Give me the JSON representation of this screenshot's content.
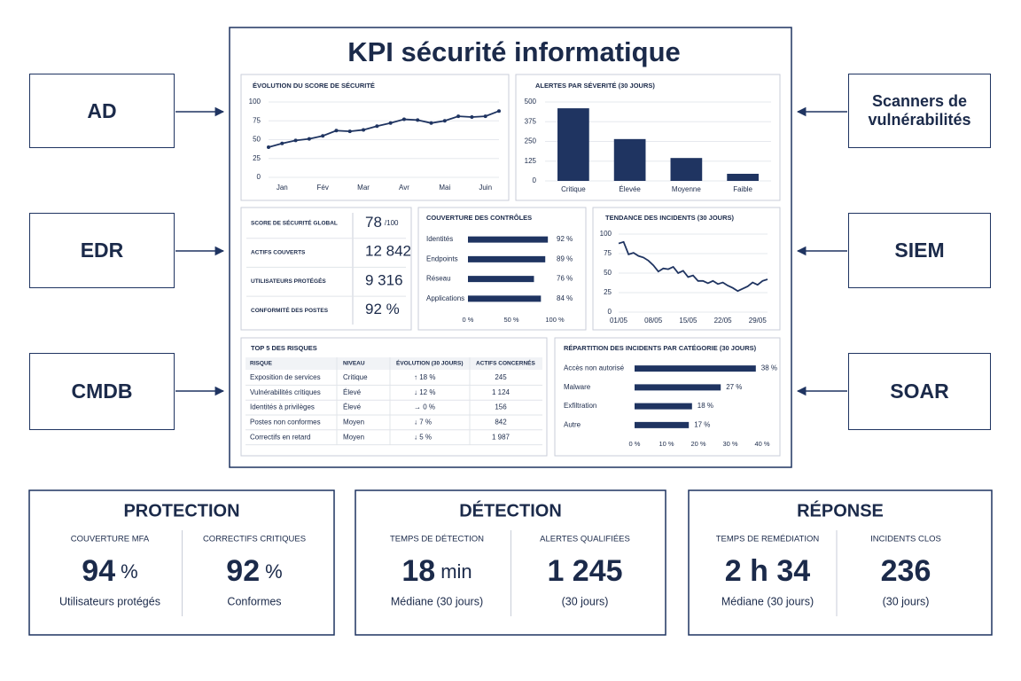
{
  "title": "KPI sécurité informatique",
  "sources_left": [
    "AD",
    "EDR",
    "CMDB"
  ],
  "sources_right": [
    "Scanners de vulnérabilités",
    "SIEM",
    "SOAR"
  ],
  "chart_data": [
    {
      "type": "line",
      "title": "ÉVOLUTION DU SCORE DE SÉCURITÉ",
      "color": "#1f3461",
      "markers": true,
      "grid": true,
      "categories": [
        null,
        "Jan",
        null,
        null,
        "Fév",
        null,
        null,
        "Mar",
        null,
        null,
        "Avr",
        null,
        null,
        "Mai",
        null,
        null,
        "Juin",
        null
      ],
      "values": [
        40,
        45,
        49,
        51,
        55,
        62,
        61,
        63,
        68,
        72,
        77,
        76,
        72,
        75,
        81,
        80,
        81,
        88
      ],
      "ylim": [
        0,
        100
      ],
      "yticks": [
        0,
        25,
        50,
        75,
        100
      ]
    },
    {
      "type": "bar",
      "title": "ALERTES PAR SÉVERITÉ (30 JOURS)",
      "color": "#1f3461",
      "grid": true,
      "categories": [
        "Critique",
        "Élevée",
        "Moyenne",
        "Faible"
      ],
      "values": [
        460,
        265,
        145,
        45
      ],
      "ylim": [
        0,
        500
      ],
      "yticks": [
        0,
        125,
        250,
        375,
        500
      ]
    },
    {
      "type": "hbar",
      "title": "COUVERTURE DES CONTRÔLES",
      "color": "#1f3461",
      "categories": [
        "Identités",
        "Endpoints",
        "Réseau",
        "Applications"
      ],
      "values": [
        92,
        89,
        76,
        84
      ],
      "value_labels": [
        "92 %",
        "89 %",
        "76 %",
        "84 %"
      ],
      "xlim": [
        0,
        100
      ],
      "xticks": [
        {
          "value": 0,
          "label": "0 %"
        },
        {
          "value": 50,
          "label": "50 %"
        },
        {
          "value": 100,
          "label": "100 %"
        }
      ]
    },
    {
      "type": "line",
      "title": "TENDANCE DES INCIDENTS (30 JOURS)",
      "color": "#1f3461",
      "markers": false,
      "grid": true,
      "categories": [
        "01/05",
        null,
        null,
        null,
        null,
        null,
        null,
        "08/05",
        null,
        null,
        null,
        null,
        null,
        null,
        "15/05",
        null,
        null,
        null,
        null,
        null,
        null,
        "22/05",
        null,
        null,
        null,
        null,
        null,
        null,
        "29/05",
        null,
        null
      ],
      "values": [
        88,
        90,
        74,
        76,
        72,
        70,
        66,
        60,
        52,
        56,
        55,
        58,
        50,
        53,
        45,
        47,
        40,
        40,
        37,
        40,
        36,
        38,
        34,
        31,
        27,
        30,
        33,
        38,
        35,
        40,
        42
      ],
      "ylim": [
        0,
        100
      ],
      "yticks": [
        0,
        25,
        50,
        75,
        100
      ]
    },
    {
      "type": "hbar",
      "title": "RÉPARTITION DES INCIDENTS PAR CATÉGORIE (30 JOURS)",
      "color": "#1f3461",
      "categories": [
        "Accès non autorisé",
        "Malware",
        "Exfiltration",
        "Autre"
      ],
      "values": [
        38,
        27,
        18,
        17
      ],
      "value_labels": [
        "38 %",
        "27 %",
        "18 %",
        "17 %"
      ],
      "xlim": [
        0,
        40
      ],
      "xticks": [
        {
          "value": 0,
          "label": "0 %"
        },
        {
          "value": 10,
          "label": "10 %"
        },
        {
          "value": 20,
          "label": "20 %"
        },
        {
          "value": 30,
          "label": "30 %"
        },
        {
          "value": 40,
          "label": "40 %"
        }
      ]
    }
  ],
  "kpis": [
    {
      "label": "SCORE DE SÉCURITÉ GLOBAL",
      "value": "78",
      "unit": "/100"
    },
    {
      "label": "ACTIFS COUVERTS",
      "value": "12 842"
    },
    {
      "label": "UTILISATEURS PROTÉGÉS",
      "value": "9 316"
    },
    {
      "label": "CONFORMITÉ DES POSTES",
      "value": "92 %"
    }
  ],
  "table": {
    "title": "TOP 5 DES RISQUES",
    "header": [
      "RISQUE",
      "NIVEAU",
      "ÉVOLUTION (30 JOURS)",
      "ACTIFS CONCERNÉS"
    ],
    "rows": [
      [
        "Exposition de services",
        "Critique",
        "↑ 18 %",
        "245"
      ],
      [
        "Vulnérabilités critiques",
        "Élevé",
        "↓ 12 %",
        "1 124"
      ],
      [
        "Identités à privilèges",
        "Élevé",
        "→ 0 %",
        "156"
      ],
      [
        "Postes non conformes",
        "Moyen",
        "↓ 7 %",
        "842"
      ],
      [
        "Correctifs en retard",
        "Moyen",
        "↓ 5 %",
        "1 987"
      ]
    ]
  },
  "summary": [
    {
      "title": "PROTECTION",
      "metrics": [
        {
          "label": "COUVERTURE MFA",
          "value": "94",
          "unit": "%",
          "note": "Utilisateurs protégés"
        },
        {
          "label": "CORRECTIFS CRITIQUES",
          "value": "92",
          "unit": "%",
          "note": "Conformes"
        }
      ]
    },
    {
      "title": "DÉTECTION",
      "metrics": [
        {
          "label": "TEMPS DE DÉTECTION",
          "value": "18",
          "unit": "min",
          "note": "Médiane (30 jours)"
        },
        {
          "label": "ALERTES QUALIFIÉES",
          "value": "1 245",
          "note": "(30 jours)"
        }
      ]
    },
    {
      "title": "RÉPONSE",
      "metrics": [
        {
          "label": "TEMPS DE REMÉDIATION",
          "value": "2 h 34",
          "note": "Médiane (30 jours)"
        },
        {
          "label": "INCIDENTS CLOS",
          "value": "236",
          "note": "(30 jours)"
        }
      ]
    }
  ]
}
